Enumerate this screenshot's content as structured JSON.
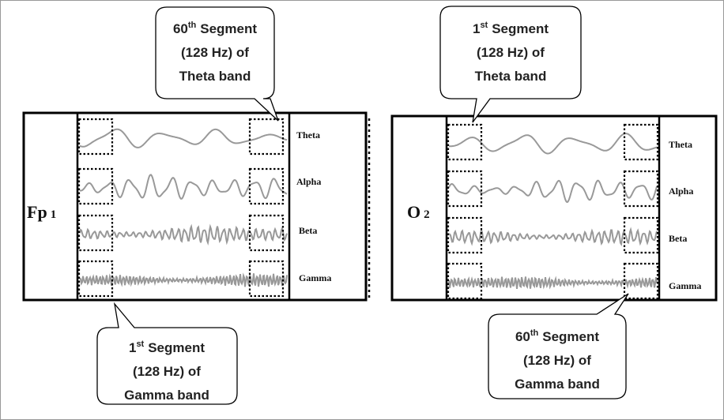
{
  "panels": [
    {
      "channel": "Fp",
      "channel_sub": "1",
      "bands": [
        "Theta",
        "Alpha",
        "Beta",
        "Gamma"
      ]
    },
    {
      "channel": "O",
      "channel_sub": "2",
      "bands": [
        "Theta",
        "Alpha",
        "Beta",
        "Gamma"
      ]
    }
  ],
  "callouts": [
    {
      "ordinal": "60",
      "suffix": "th",
      "lines": [
        "Segment",
        "(128 Hz) of",
        "Theta band"
      ]
    },
    {
      "ordinal": "1",
      "suffix": "st",
      "lines": [
        "Segment",
        "(128 Hz) of",
        "Theta band"
      ]
    },
    {
      "ordinal": "1",
      "suffix": "st",
      "lines": [
        "Segment",
        "(128 Hz) of",
        "Gamma band"
      ]
    },
    {
      "ordinal": "60",
      "suffix": "th",
      "lines": [
        "Segment",
        "(128 Hz) of",
        "Gamma band"
      ]
    }
  ]
}
